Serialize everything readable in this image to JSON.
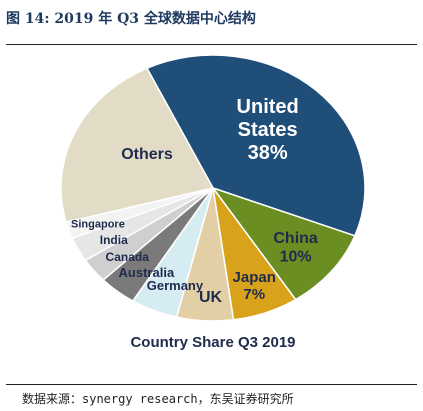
{
  "figure_title": "图 14:  2019 年 Q3 全球数据中心结构",
  "source": "数据来源：synergy research，东吴证券研究所",
  "chart_data": {
    "type": "pie",
    "title": "Country Share Q3 2019",
    "slices": [
      {
        "label": "United States",
        "value": 38,
        "value_label": "38%",
        "color": "#1f4e79",
        "text_color": "#ffffff"
      },
      {
        "label": "China",
        "value": 10,
        "value_label": "10%",
        "color": "#6b8e23",
        "text_color": "#1f2b4d"
      },
      {
        "label": "Japan",
        "value": 7,
        "value_label": "7%",
        "color": "#d9a21b",
        "text_color": "#1f2b4d"
      },
      {
        "label": "UK",
        "value": 6,
        "value_label": "",
        "color": "#e3cfa6",
        "text_color": "#1f2b4d"
      },
      {
        "label": "Germany",
        "value": 5,
        "value_label": "",
        "color": "#d6ecf3",
        "text_color": "#1f2b4d"
      },
      {
        "label": "Australia",
        "value": 4,
        "value_label": "",
        "color": "#7a7a7a",
        "text_color": "#1f2b4d"
      },
      {
        "label": "Canada",
        "value": 3,
        "value_label": "",
        "color": "#cfcfcf",
        "text_color": "#1f2b4d"
      },
      {
        "label": "India",
        "value": 3,
        "value_label": "",
        "color": "#e6e6e6",
        "text_color": "#1f2b4d"
      },
      {
        "label": "Singapore",
        "value": 2,
        "value_label": "",
        "color": "#f3f3f3",
        "text_color": "#1f2b4d"
      },
      {
        "label": "Others",
        "value": 22,
        "value_label": "",
        "color": "#e2dcc7",
        "text_color": "#1f2b4d"
      }
    ]
  }
}
